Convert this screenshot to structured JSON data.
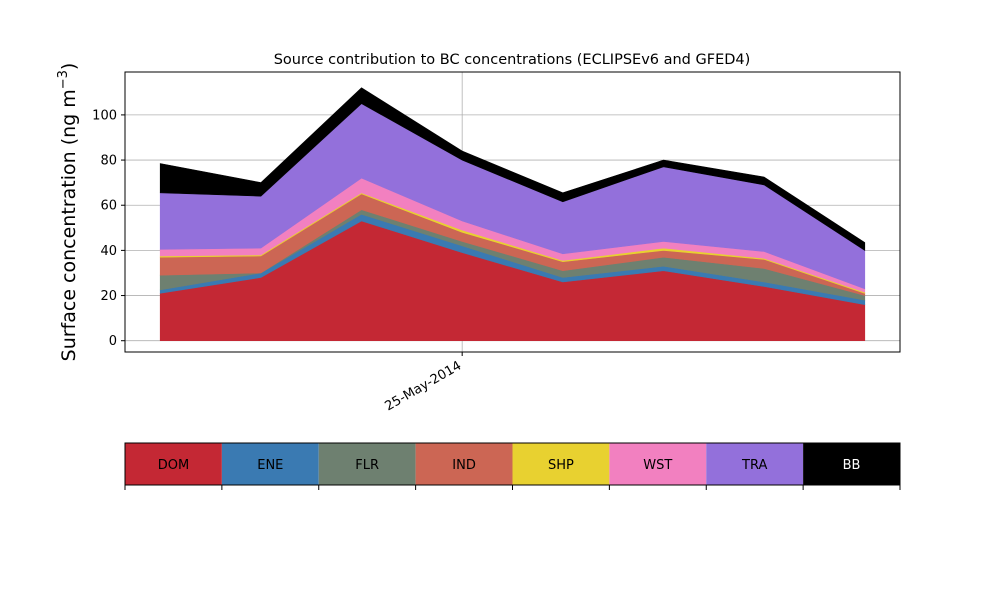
{
  "chart_data": {
    "type": "area",
    "title": "Source contribution to BC concentrations (ECLIPSEv6 and GFED4)",
    "xlabel": "",
    "ylabel_main": "Surface concentration (ng m",
    "ylabel_sup": "−3",
    "ylabel_tail": ")",
    "ylim": [
      -5,
      119
    ],
    "yticks": [
      0,
      20,
      40,
      60,
      80,
      100
    ],
    "x_index": [
      0,
      1,
      2,
      3,
      4,
      5,
      6,
      7
    ],
    "xlim": [
      -0.35,
      7.35
    ],
    "x_tick_index": 3,
    "x_tick_label": "25-May-2014",
    "grid": true,
    "legend_placement": "colorbar-below",
    "series": [
      {
        "name": "DOM",
        "color": "#c42834",
        "values": [
          21,
          28,
          53,
          39,
          26,
          31,
          24,
          16
        ]
      },
      {
        "name": "ENE",
        "color": "#3a7ab2",
        "values": [
          1.5,
          2,
          3,
          3,
          2,
          2,
          2,
          2
        ]
      },
      {
        "name": "FLR",
        "color": "#6e8070",
        "values": [
          6.5,
          0,
          2,
          2,
          3,
          4,
          6,
          2
        ]
      },
      {
        "name": "IND",
        "color": "#cc6654",
        "values": [
          8,
          7.5,
          7,
          4,
          4,
          3,
          4,
          1
        ]
      },
      {
        "name": "SHP",
        "color": "#e8d130",
        "values": [
          0.5,
          0.5,
          0.5,
          1,
          0.5,
          1,
          0.5,
          0.5
        ]
      },
      {
        "name": "WST",
        "color": "#f280c0",
        "values": [
          3,
          3,
          6.5,
          4,
          3,
          3,
          3,
          1.5
        ]
      },
      {
        "name": "TRA",
        "color": "#9370db",
        "values": [
          25,
          23,
          33,
          27,
          23,
          33,
          29.5,
          17
        ]
      },
      {
        "name": "BB",
        "color": "#000000",
        "values": [
          13,
          6,
          7,
          4,
          4,
          3,
          3.5,
          3.5
        ]
      }
    ]
  }
}
